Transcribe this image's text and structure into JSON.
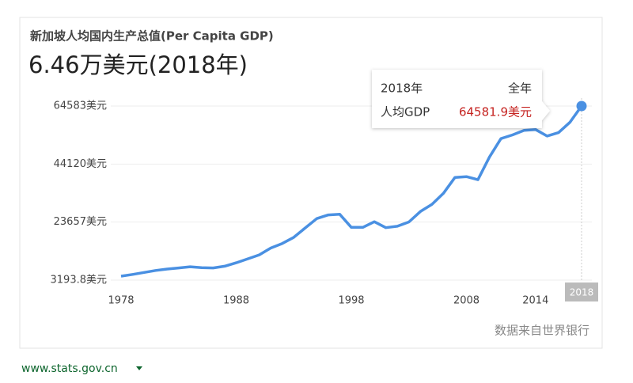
{
  "chart_data": {
    "type": "line",
    "title": "新加坡人均国内生产总值(Per Capita GDP)",
    "headline": "6.46万美元(2018年)",
    "source": "数据来自世界银行",
    "url": "www.stats.gov.cn",
    "x": [
      1978,
      1979,
      1980,
      1981,
      1982,
      1983,
      1984,
      1985,
      1986,
      1987,
      1988,
      1989,
      1990,
      1991,
      1992,
      1993,
      1994,
      1995,
      1996,
      1997,
      1998,
      1999,
      2000,
      2001,
      2002,
      2003,
      2004,
      2005,
      2006,
      2007,
      2008,
      2009,
      2010,
      2011,
      2012,
      2013,
      2014,
      2015,
      2016,
      2017,
      2018
    ],
    "series": [
      {
        "name": "人均GDP",
        "color": "#4a90e2",
        "values": [
          4600,
          5200,
          5900,
          6600,
          7100,
          7500,
          7900,
          7600,
          7500,
          8100,
          9300,
          10700,
          12100,
          14500,
          16100,
          18300,
          21600,
          24900,
          26200,
          26400,
          21800,
          21800,
          23800,
          21700,
          22200,
          23700,
          27400,
          29900,
          33800,
          39400,
          39700,
          38600,
          46600,
          53100,
          54400,
          56000,
          56300,
          54000,
          55200,
          58900,
          64581.9
        ]
      }
    ],
    "xlim": [
      1978,
      2018
    ],
    "xticks": [
      1978,
      1988,
      1998,
      2008,
      2014,
      2018
    ],
    "ylim": [
      3193.8,
      64583
    ],
    "yticks": [
      {
        "value": 3193.8,
        "label": "3193.8美元"
      },
      {
        "value": 23657,
        "label": "23657美元"
      },
      {
        "value": 44120,
        "label": "44120美元"
      },
      {
        "value": 64583,
        "label": "64583美元"
      }
    ],
    "grid": true,
    "tooltip": {
      "period_label": "2018年",
      "span": "全年",
      "metric": "人均GDP",
      "value_label": "64581.9美元"
    }
  }
}
